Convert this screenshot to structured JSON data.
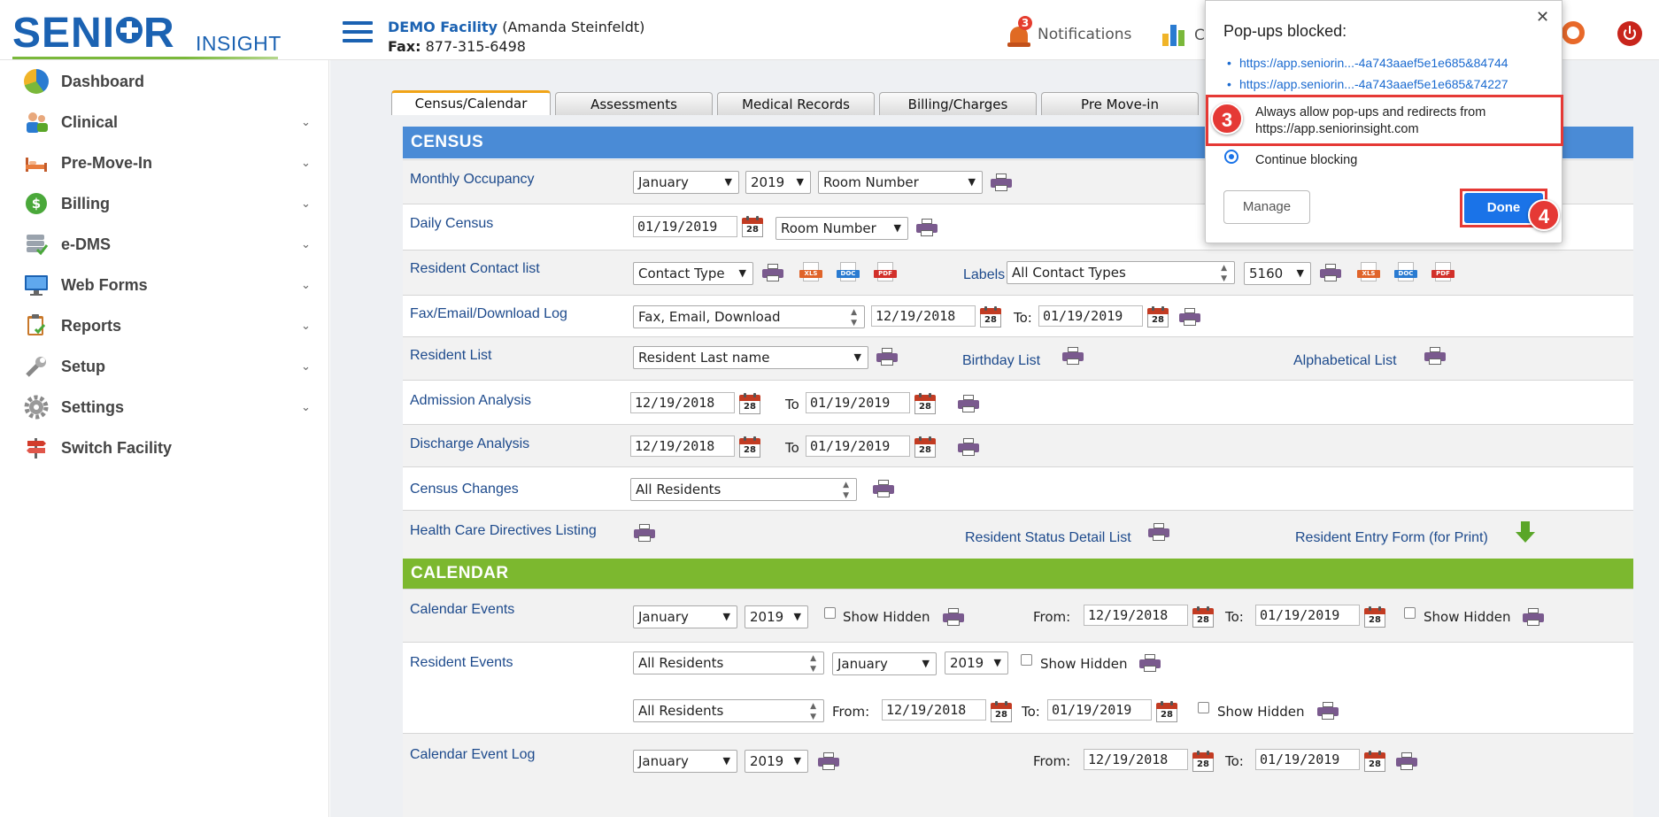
{
  "header": {
    "logo_senior": "SENI",
    "logo_senior_end": "R",
    "logo_insight": "INSIGHT",
    "facility_name": "DEMO Facility",
    "facility_user": "(Amanda Steinfeldt)",
    "fax_label": "Fax:",
    "fax_number": "877-315-6498",
    "notification_count": "3",
    "notifications_label": "Notifications",
    "chart_label": "C"
  },
  "sidebar": {
    "items": [
      {
        "label": "Dashboard",
        "icon": "dashboard-icon"
      },
      {
        "label": "Clinical",
        "icon": "clinical-icon"
      },
      {
        "label": "Pre-Move-In",
        "icon": "bed-icon"
      },
      {
        "label": "Billing",
        "icon": "dollar-icon"
      },
      {
        "label": "e-DMS",
        "icon": "database-icon"
      },
      {
        "label": "Web Forms",
        "icon": "monitor-icon"
      },
      {
        "label": "Reports",
        "icon": "clipboard-icon"
      },
      {
        "label": "Setup",
        "icon": "wrench-icon"
      },
      {
        "label": "Settings",
        "icon": "gear-icon"
      },
      {
        "label": "Switch Facility",
        "icon": "signpost-icon"
      }
    ]
  },
  "tabs": [
    "Census/Calendar",
    "Assessments",
    "Medical Records",
    "Billing/Charges",
    "Pre Move-in"
  ],
  "census": {
    "title": "CENSUS",
    "color": "#4a8bd6",
    "monthly_occupancy": {
      "label": "Monthly Occupancy",
      "month": "January",
      "year": "2019",
      "sort": "Room Number"
    },
    "daily_census": {
      "label": "Daily Census",
      "date": "01/19/2019",
      "sort": "Room Number"
    },
    "resident_contact": {
      "label": "Resident Contact list",
      "type": "Contact Type",
      "labels_label": "Labels",
      "labels_type": "All Contact Types",
      "labels_format": "5160"
    },
    "fax_log": {
      "label": "Fax/Email/Download Log",
      "type": "Fax, Email, Download",
      "from": "12/19/2018",
      "to_label": "To:",
      "to": "01/19/2019"
    },
    "resident_list": {
      "label": "Resident List",
      "sort": "Resident Last name",
      "birthday_label": "Birthday List",
      "alpha_label": "Alphabetical List"
    },
    "admission": {
      "label": "Admission Analysis",
      "from": "12/19/2018",
      "to_label": "To",
      "to": "01/19/2019"
    },
    "discharge": {
      "label": "Discharge Analysis",
      "from": "12/19/2018",
      "to_label": "To",
      "to": "01/19/2019"
    },
    "census_changes": {
      "label": "Census Changes",
      "filter": "All Residents"
    },
    "health_care": {
      "label": "Health Care Directives Listing",
      "status_label": "Resident Status Detail List",
      "entry_label": "Resident Entry Form (for Print)"
    }
  },
  "calendar": {
    "title": "CALENDAR",
    "color": "#7cb82f",
    "events": {
      "label": "Calendar Events",
      "month": "January",
      "year": "2019",
      "hidden_label": "Show Hidden",
      "from_label": "From:",
      "from": "12/19/2018",
      "to_label": "To:",
      "to": "01/19/2019",
      "hidden_label2": "Show Hidden"
    },
    "resident_events": {
      "label": "Resident Events",
      "filter": "All Residents",
      "month": "January",
      "year": "2019",
      "hidden_label": "Show Hidden",
      "filter2": "All Residents",
      "from_label": "From:",
      "from": "12/19/2018",
      "to_label": "To:",
      "to": "01/19/2019",
      "hidden_label2": "Show Hidden"
    },
    "event_log": {
      "label": "Calendar Event Log",
      "month": "January",
      "year": "2019",
      "from_label": "From:",
      "from": "12/19/2018",
      "to_label": "To:",
      "to": "01/19/2019"
    }
  },
  "file_tags": {
    "xls": "XLS",
    "doc": "DOC",
    "pdf": "PDF"
  },
  "calendar_day": "28",
  "popup": {
    "title": "Pop-ups blocked:",
    "links": [
      "https://app.seniorin...-4a743aaef5e1e685&84744",
      "https://app.seniorin...-4a743aaef5e1e685&74227"
    ],
    "allow_label": "Always allow pop-ups and redirects from https://app.seniorinsight.com",
    "block_label": "Continue blocking",
    "manage_label": "Manage",
    "done_label": "Done",
    "step_allow": "3",
    "step_done": "4"
  }
}
